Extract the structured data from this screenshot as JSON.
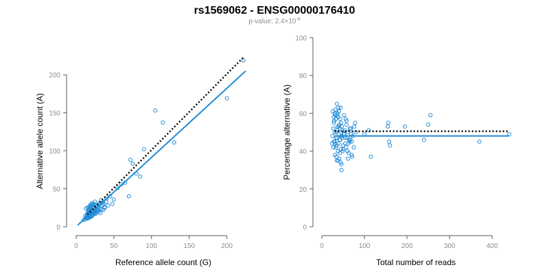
{
  "title": "rs1569062 - ENSG00000176410",
  "subtitle": {
    "prefix": "p-value: 2.4×10",
    "exponent": "-6"
  },
  "colors": {
    "points": "#1f8ad6",
    "fit_line": "#1f8ad6",
    "reference_line": "#000000",
    "axis": "#5a5a5a",
    "tick_text": "#8c8c8c"
  },
  "chart_data": [
    {
      "id": "left",
      "type": "scatter",
      "title": "",
      "xlabel": "Reference allele count (G)",
      "ylabel": "Alternative allele count (A)",
      "xlim": [
        0,
        225
      ],
      "ylim": [
        0,
        220
      ],
      "xticks": [
        0,
        50,
        100,
        150,
        200
      ],
      "yticks": [
        0,
        50,
        100,
        150,
        200
      ],
      "grid": false,
      "lines": [
        {
          "style": "dotted",
          "color": "#000000",
          "x": [
            15,
            222
          ],
          "y": [
            16,
            223
          ]
        },
        {
          "style": "solid",
          "color": "#1f8ad6",
          "x": [
            2,
            225
          ],
          "y": [
            2,
            205
          ]
        }
      ],
      "points": {
        "x": [
          10,
          12,
          13,
          14,
          15,
          15,
          16,
          16,
          17,
          17,
          17,
          18,
          18,
          18,
          19,
          19,
          19,
          20,
          20,
          20,
          21,
          21,
          21,
          22,
          22,
          22,
          23,
          23,
          24,
          24,
          25,
          25,
          26,
          27,
          28,
          29,
          30,
          31,
          32,
          33,
          34,
          35,
          36,
          38,
          40,
          42,
          12,
          14,
          16,
          18,
          20,
          22,
          24,
          26,
          28,
          30,
          15,
          17,
          19,
          21,
          23,
          25,
          27,
          13,
          18,
          22,
          26,
          30,
          34,
          38,
          14,
          16,
          20,
          24,
          28,
          32,
          36,
          40,
          45,
          48,
          50,
          55,
          60,
          65,
          70,
          72,
          75,
          80,
          85,
          90,
          105,
          115,
          130,
          200,
          222
        ],
        "y": [
          9,
          10,
          12,
          13,
          12,
          18,
          11,
          22,
          14,
          20,
          26,
          12,
          17,
          24,
          13,
          19,
          29,
          15,
          21,
          27,
          14,
          18,
          31,
          16,
          22,
          28,
          17,
          25,
          19,
          30,
          18,
          33,
          21,
          24,
          28,
          22,
          26,
          31,
          24,
          35,
          27,
          32,
          29,
          25,
          37,
          28,
          14,
          16,
          18,
          20,
          22,
          24,
          20,
          26,
          22,
          29,
          25,
          23,
          17,
          15,
          28,
          21,
          19,
          24,
          27,
          30,
          17,
          20,
          23,
          26,
          11,
          13,
          14,
          19,
          23,
          18,
          22,
          33,
          40,
          30,
          36,
          51,
          56,
          58,
          40,
          88,
          83,
          70,
          66,
          102,
          153,
          137,
          111,
          169,
          219
        ]
      }
    },
    {
      "id": "right",
      "type": "scatter",
      "title": "",
      "xlabel": "Total number of reads",
      "ylabel": "Percentage alternative (A)",
      "xlim": [
        0,
        440
      ],
      "ylim": [
        0,
        100
      ],
      "xticks": [
        0,
        100,
        200,
        300,
        400
      ],
      "yticks": [
        0,
        20,
        40,
        60,
        80,
        100
      ],
      "grid": false,
      "lines": [
        {
          "style": "dotted",
          "color": "#000000",
          "x": [
            30,
            440
          ],
          "y": [
            50.5,
            50.5
          ]
        },
        {
          "style": "solid",
          "color": "#1f8ad6",
          "x": [
            30,
            440
          ],
          "y": [
            48,
            48
          ]
        }
      ],
      "points": {
        "x": [
          25,
          27,
          28,
          30,
          30,
          31,
          32,
          33,
          33,
          34,
          35,
          35,
          36,
          37,
          38,
          38,
          39,
          40,
          40,
          41,
          42,
          43,
          44,
          45,
          45,
          46,
          47,
          48,
          50,
          52,
          55,
          58,
          60,
          62,
          65,
          68,
          70,
          72,
          75,
          78,
          80,
          26,
          29,
          32,
          34,
          36,
          39,
          42,
          44,
          47,
          50,
          53,
          56,
          59,
          63,
          66,
          70,
          28,
          31,
          35,
          38,
          41,
          45,
          49,
          54,
          58,
          62,
          67,
          27,
          30,
          33,
          37,
          40,
          43,
          46,
          51,
          57,
          64,
          71,
          76,
          24,
          28,
          36,
          42,
          48,
          55,
          61,
          69,
          100,
          110,
          115,
          155,
          156,
          158,
          160,
          195,
          240,
          250,
          255,
          370,
          440
        ],
        "y": [
          48,
          52,
          55,
          45,
          60,
          38,
          62,
          42,
          57,
          50,
          35,
          65,
          47,
          53,
          40,
          58,
          44,
          49,
          61,
          36,
          52,
          46,
          63,
          41,
          55,
          30,
          48,
          51,
          43,
          59,
          47,
          54,
          40,
          50,
          45,
          52,
          38,
          48,
          42,
          55,
          50,
          61,
          56,
          44,
          37,
          59,
          63,
          46,
          34,
          53,
          41,
          49,
          57,
          47,
          39,
          52,
          45,
          45,
          59,
          43,
          35,
          54,
          48,
          40,
          51,
          56,
          44,
          46,
          42,
          50,
          47,
          60,
          53,
          57,
          33,
          49,
          42,
          46,
          37,
          53,
          44,
          58,
          51,
          39,
          47,
          44,
          36,
          49,
          49,
          51,
          37,
          53,
          55,
          45,
          43,
          53,
          46,
          54,
          59,
          45,
          49
        ]
      }
    }
  ]
}
